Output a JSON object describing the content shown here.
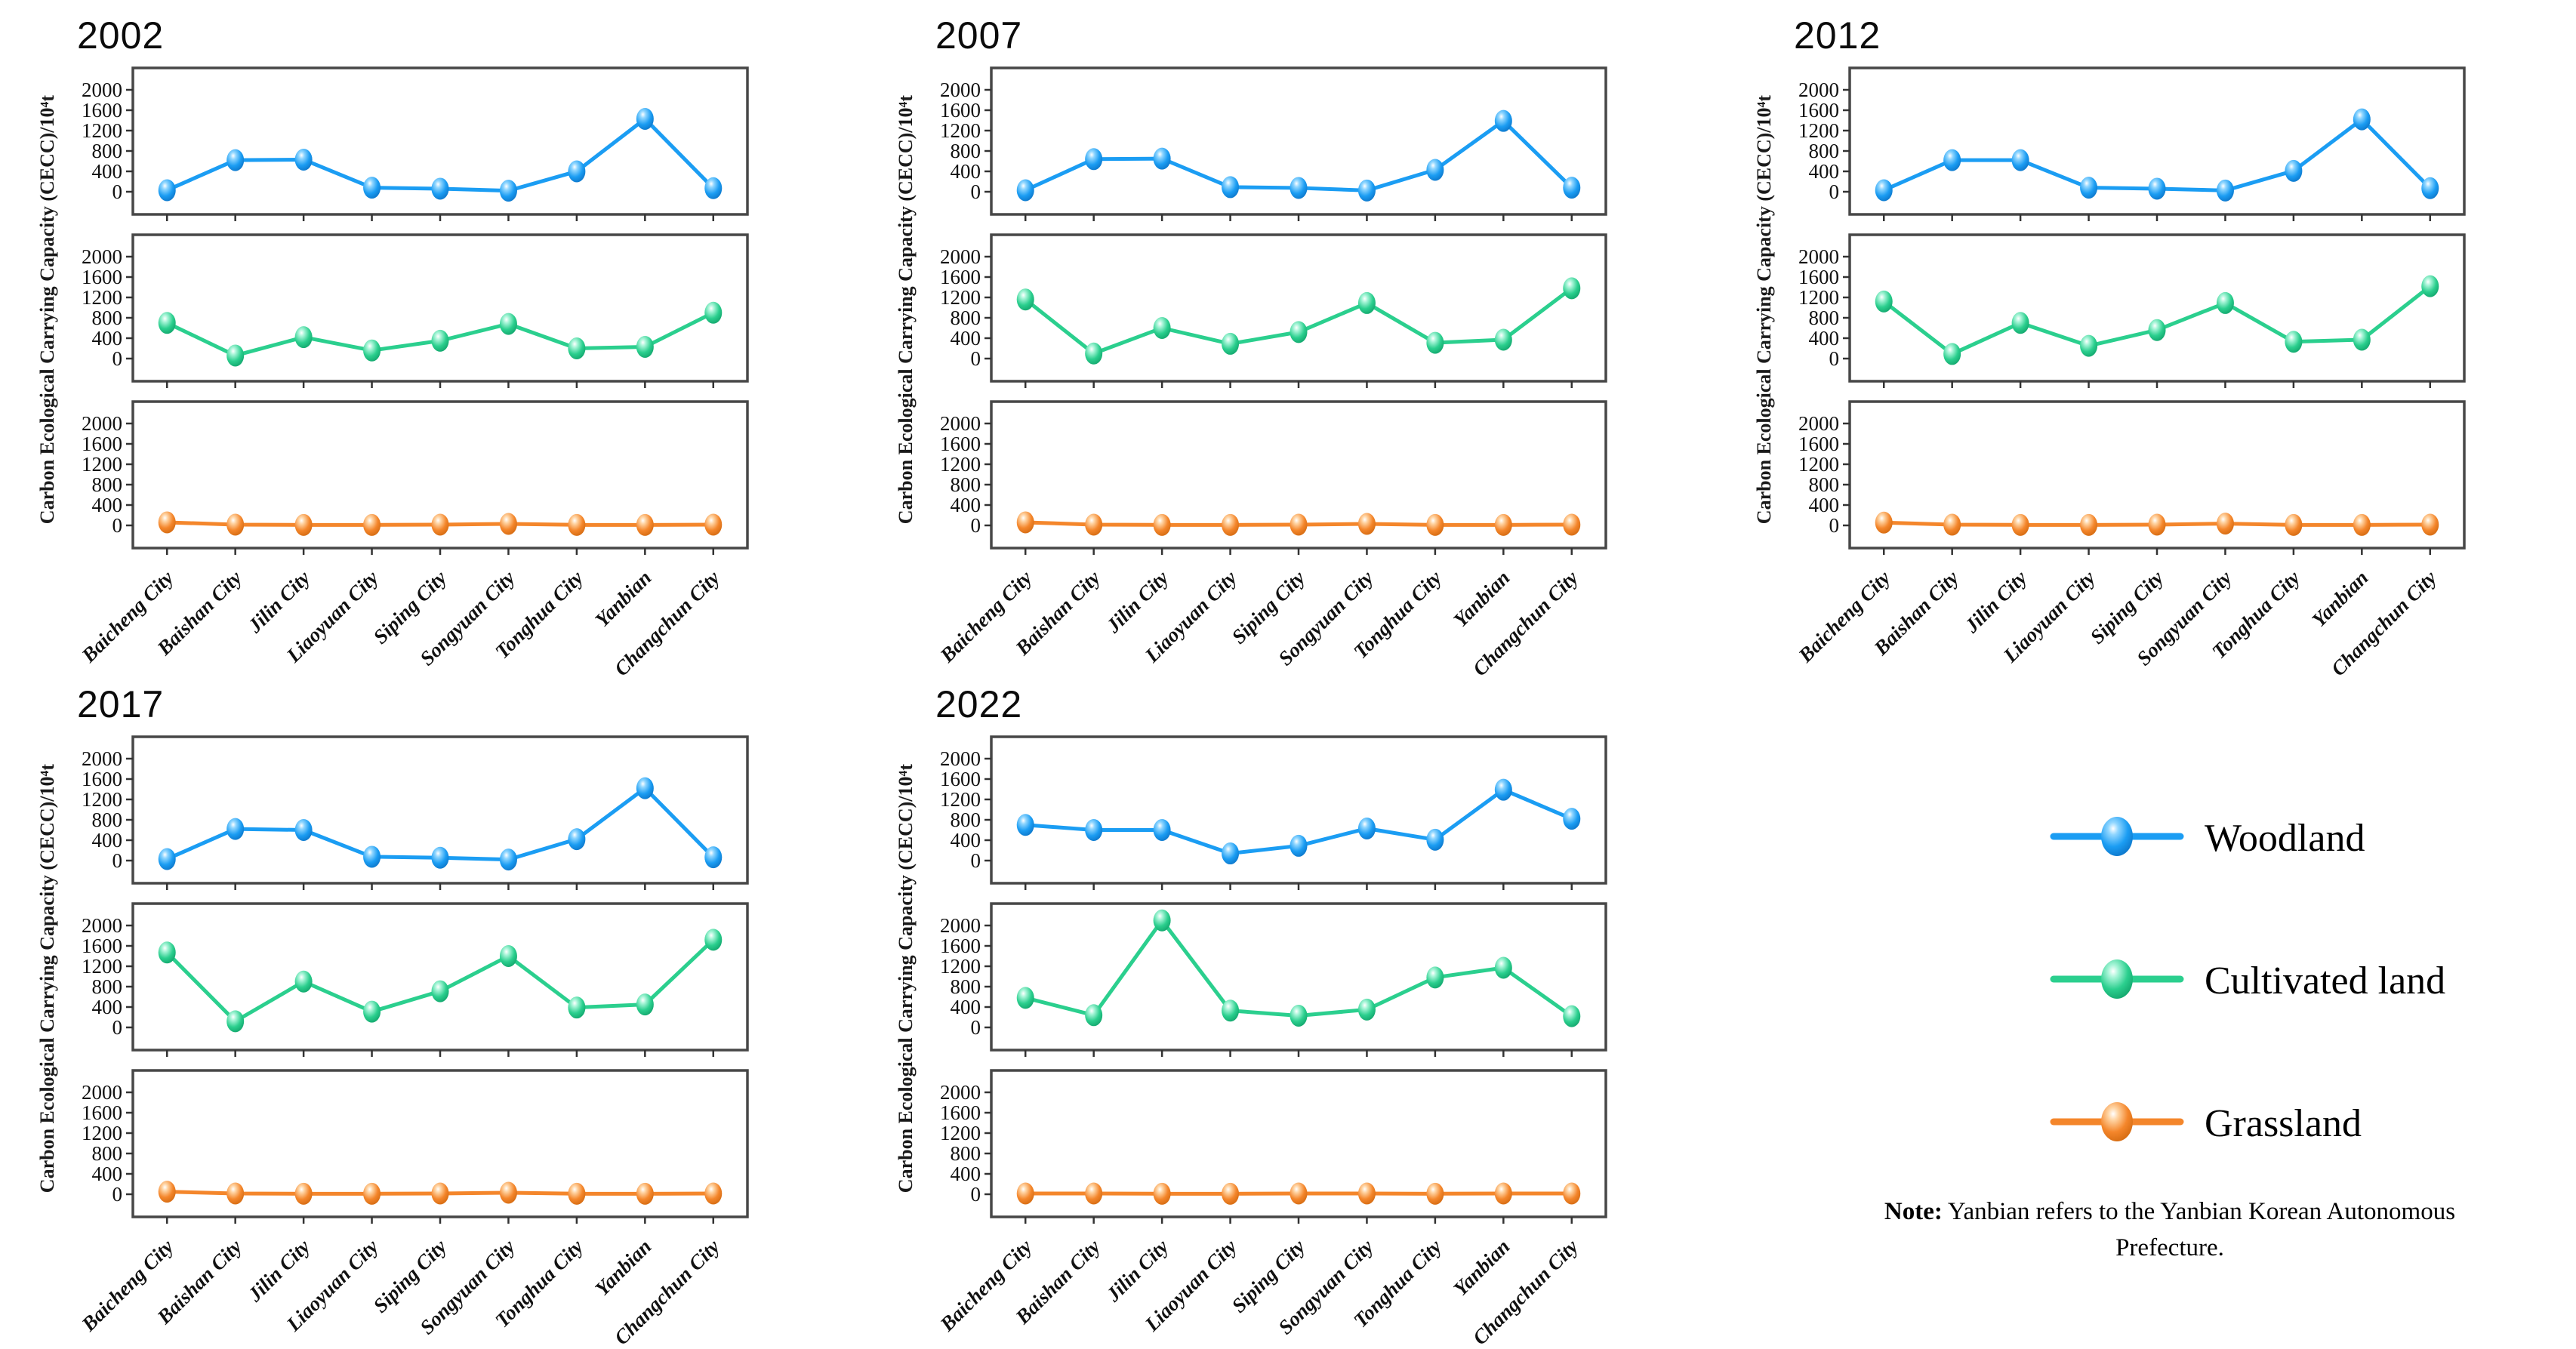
{
  "figure_title": "",
  "legend": {
    "items": [
      {
        "label": "Woodland",
        "color": "#1B9DF3",
        "color_light": "#90D6FF",
        "color_dark": "#0A6FC2"
      },
      {
        "label": "Cultivated land",
        "color": "#2BCF8E",
        "color_light": "#A8F5D8",
        "color_dark": "#0E9E66"
      },
      {
        "label": "Grassland",
        "color": "#F4862B",
        "color_light": "#FFD4A3",
        "color_dark": "#CE660D"
      }
    ]
  },
  "note": {
    "label": "Note:",
    "text": " Yanbian refers to the Yanbian Korean Autonomous Prefecture."
  },
  "chart_data": {
    "type": "line",
    "categories": [
      "Baicheng City",
      "Baishan City",
      "Jilin City",
      "Liaoyuan City",
      "Siping City",
      "Songyuan City",
      "Tonghua City",
      "Yanbian",
      "Changchun City"
    ],
    "ylabel": "Carbon Ecological Carrying Capacity (CECC)/10⁴t",
    "yticks": [
      0,
      400,
      800,
      1200,
      1600,
      2000
    ],
    "ylim": [
      0,
      2200
    ],
    "grid": false,
    "legend_position": "right",
    "series_meta": [
      {
        "name": "Woodland",
        "color": "#1B9DF3",
        "color_light": "#90D6FF",
        "color_dark": "#0A6FC2"
      },
      {
        "name": "Cultivated land",
        "color": "#2BCF8E",
        "color_light": "#A8F5D8",
        "color_dark": "#0E9E66"
      },
      {
        "name": "Grassland",
        "color": "#F4862B",
        "color_light": "#FFD4A3",
        "color_dark": "#CE660D"
      }
    ],
    "panels": [
      {
        "year": "2002",
        "series": [
          {
            "name": "Woodland",
            "values": [
              30,
              620,
              630,
              80,
              60,
              20,
              400,
              1430,
              70
            ]
          },
          {
            "name": "Cultivated land",
            "values": [
              700,
              60,
              420,
              160,
              350,
              680,
              200,
              230,
              900
            ]
          },
          {
            "name": "Grassland",
            "values": [
              60,
              15,
              10,
              10,
              15,
              30,
              10,
              10,
              15
            ]
          }
        ]
      },
      {
        "year": "2007",
        "series": [
          {
            "name": "Woodland",
            "values": [
              30,
              640,
              650,
              90,
              75,
              25,
              430,
              1390,
              80
            ]
          },
          {
            "name": "Cultivated land",
            "values": [
              1160,
              100,
              600,
              290,
              520,
              1090,
              310,
              370,
              1380
            ]
          },
          {
            "name": "Grassland",
            "values": [
              60,
              15,
              10,
              10,
              15,
              30,
              10,
              10,
              15
            ]
          }
        ]
      },
      {
        "year": "2012",
        "series": [
          {
            "name": "Woodland",
            "values": [
              30,
              620,
              620,
              80,
              60,
              25,
              410,
              1420,
              70
            ]
          },
          {
            "name": "Cultivated land",
            "values": [
              1120,
              90,
              700,
              250,
              560,
              1090,
              330,
              370,
              1420
            ]
          },
          {
            "name": "Grassland",
            "values": [
              55,
              15,
              10,
              10,
              15,
              35,
              10,
              10,
              15
            ]
          }
        ]
      },
      {
        "year": "2017",
        "series": [
          {
            "name": "Woodland",
            "values": [
              30,
              620,
              600,
              75,
              55,
              20,
              420,
              1420,
              65
            ]
          },
          {
            "name": "Cultivated land",
            "values": [
              1470,
              120,
              900,
              310,
              710,
              1400,
              390,
              450,
              1720
            ]
          },
          {
            "name": "Grassland",
            "values": [
              50,
              15,
              10,
              10,
              15,
              30,
              10,
              10,
              15
            ]
          }
        ]
      },
      {
        "year": "2022",
        "series": [
          {
            "name": "Woodland",
            "values": [
              700,
              600,
              600,
              140,
              290,
              630,
              410,
              1390,
              820
            ]
          },
          {
            "name": "Cultivated land",
            "values": [
              580,
              240,
              2100,
              330,
              230,
              350,
              980,
              1170,
              220
            ]
          },
          {
            "name": "Grassland",
            "values": [
              15,
              15,
              10,
              10,
              15,
              15,
              10,
              15,
              15
            ]
          }
        ]
      }
    ]
  }
}
